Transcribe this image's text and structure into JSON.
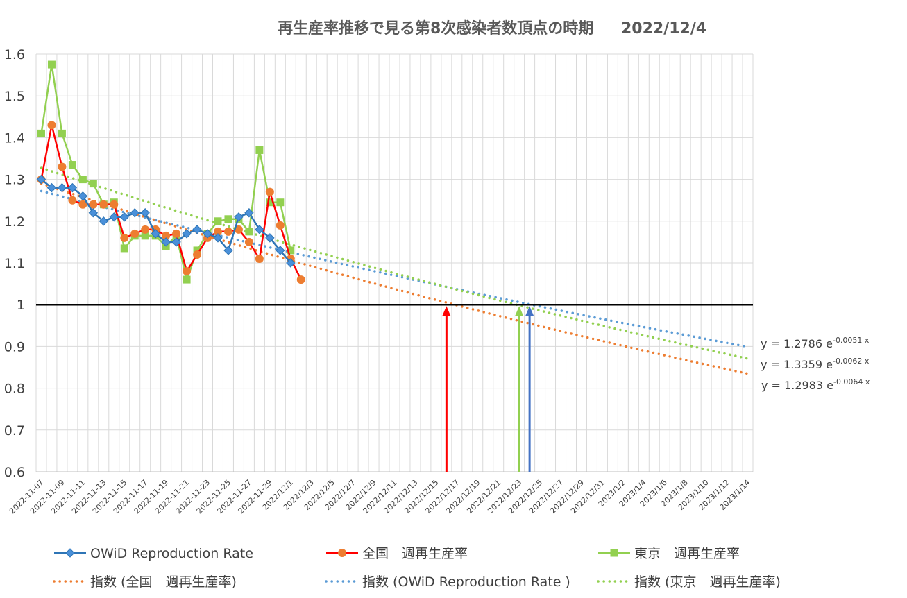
{
  "chart_data": {
    "type": "line",
    "title": "再生産率推移で見る第8次感染者数頂点の時期",
    "date": "2022/12/4",
    "ylim": [
      0.6,
      1.6
    ],
    "yticks": [
      "1.6",
      "1.5",
      "1.4",
      "1.3",
      "1.2",
      "1.1",
      "1",
      "0.9",
      "0.8",
      "0.7",
      "0.6"
    ],
    "xlabels": [
      "2022-11-07",
      "2022-11-09",
      "2022-11-11",
      "2022-11-13",
      "2022-11-15",
      "2022-11-17",
      "2022-11-19",
      "2022-11-21",
      "2022-11-23",
      "2022-11-25",
      "2022-11-27",
      "2022-11-29",
      "2022/12/1",
      "2022/12/3",
      "2022/12/5",
      "2022/12/7",
      "2022/12/9",
      "2022/12/11",
      "2022/12/13",
      "2022/12/15",
      "2022/12/17",
      "2022/12/19",
      "2022/12/21",
      "2022/12/23",
      "2022/12/25",
      "2022/12/27",
      "2022/12/29",
      "2022/12/31",
      "2023/1/2",
      "2023/1/4",
      "2023/1/6",
      "2023/1/8",
      "2023/1/10",
      "2023/1/12",
      "2023/1/14"
    ],
    "grid": true,
    "legend_position": "bottom",
    "series": [
      {
        "name": "OWiD Reproduction Rate",
        "color": "#2E75B6",
        "marker": "diamond",
        "start": "2022-11-07",
        "values": [
          1.3,
          1.28,
          1.28,
          1.28,
          1.26,
          1.22,
          1.2,
          1.21,
          1.21,
          1.22,
          1.22,
          1.17,
          1.15,
          1.15,
          1.17,
          1.18,
          1.17,
          1.16,
          1.13,
          1.21,
          1.22,
          1.18,
          1.16,
          1.13,
          1.1
        ]
      },
      {
        "name": "全国　週再生産率",
        "color": "#FF0000",
        "markerColor": "#ED7D31",
        "marker": "circle",
        "start": "2022-11-07",
        "values": [
          1.3,
          1.43,
          1.33,
          1.25,
          1.24,
          1.24,
          1.24,
          1.24,
          1.16,
          1.17,
          1.18,
          1.18,
          1.165,
          1.17,
          1.08,
          1.12,
          1.16,
          1.175,
          1.175,
          1.18,
          1.15,
          1.11,
          1.27,
          1.19,
          1.11,
          1.06
        ]
      },
      {
        "name": "東京　週再生産率",
        "color": "#92D050",
        "marker": "square",
        "start": "2022-11-07",
        "values": [
          1.41,
          1.575,
          1.41,
          1.335,
          1.3,
          1.29,
          1.24,
          1.245,
          1.135,
          1.165,
          1.165,
          1.165,
          1.14,
          1.165,
          1.06,
          1.13,
          1.17,
          1.2,
          1.205,
          1.205,
          1.175,
          1.37,
          1.245,
          1.245,
          1.13
        ]
      },
      {
        "name": "指数 (全国　週再生産率)",
        "color": "#ED7D31",
        "trendline": true,
        "a": 1.2983,
        "b": -0.0064
      },
      {
        "name": "指数 (OWiD Reproduction Rate )",
        "color": "#5B9BD5",
        "trendline": true,
        "a": 1.2786,
        "b": -0.0051
      },
      {
        "name": "指数 (東京　週再生産率)",
        "color": "#92D050",
        "trendline": true,
        "a": 1.3359,
        "b": -0.0062
      }
    ],
    "equations": [
      {
        "prefix": "y = 1.2786 e",
        "exp": "-0.0051 x"
      },
      {
        "prefix": "y = 1.3359 e",
        "exp": "-0.0062 x"
      },
      {
        "prefix": "y = 1.2983 e",
        "exp": "-0.0064 x"
      }
    ],
    "reference_line": {
      "y": 1,
      "color": "#000000"
    },
    "arrows": [
      {
        "x_date": "2022/12/16",
        "color": "#FF0000"
      },
      {
        "x_date": "2022/12/23",
        "color": "#92D050"
      },
      {
        "x_date": "2022/12/24",
        "color": "#4472C4"
      }
    ]
  }
}
